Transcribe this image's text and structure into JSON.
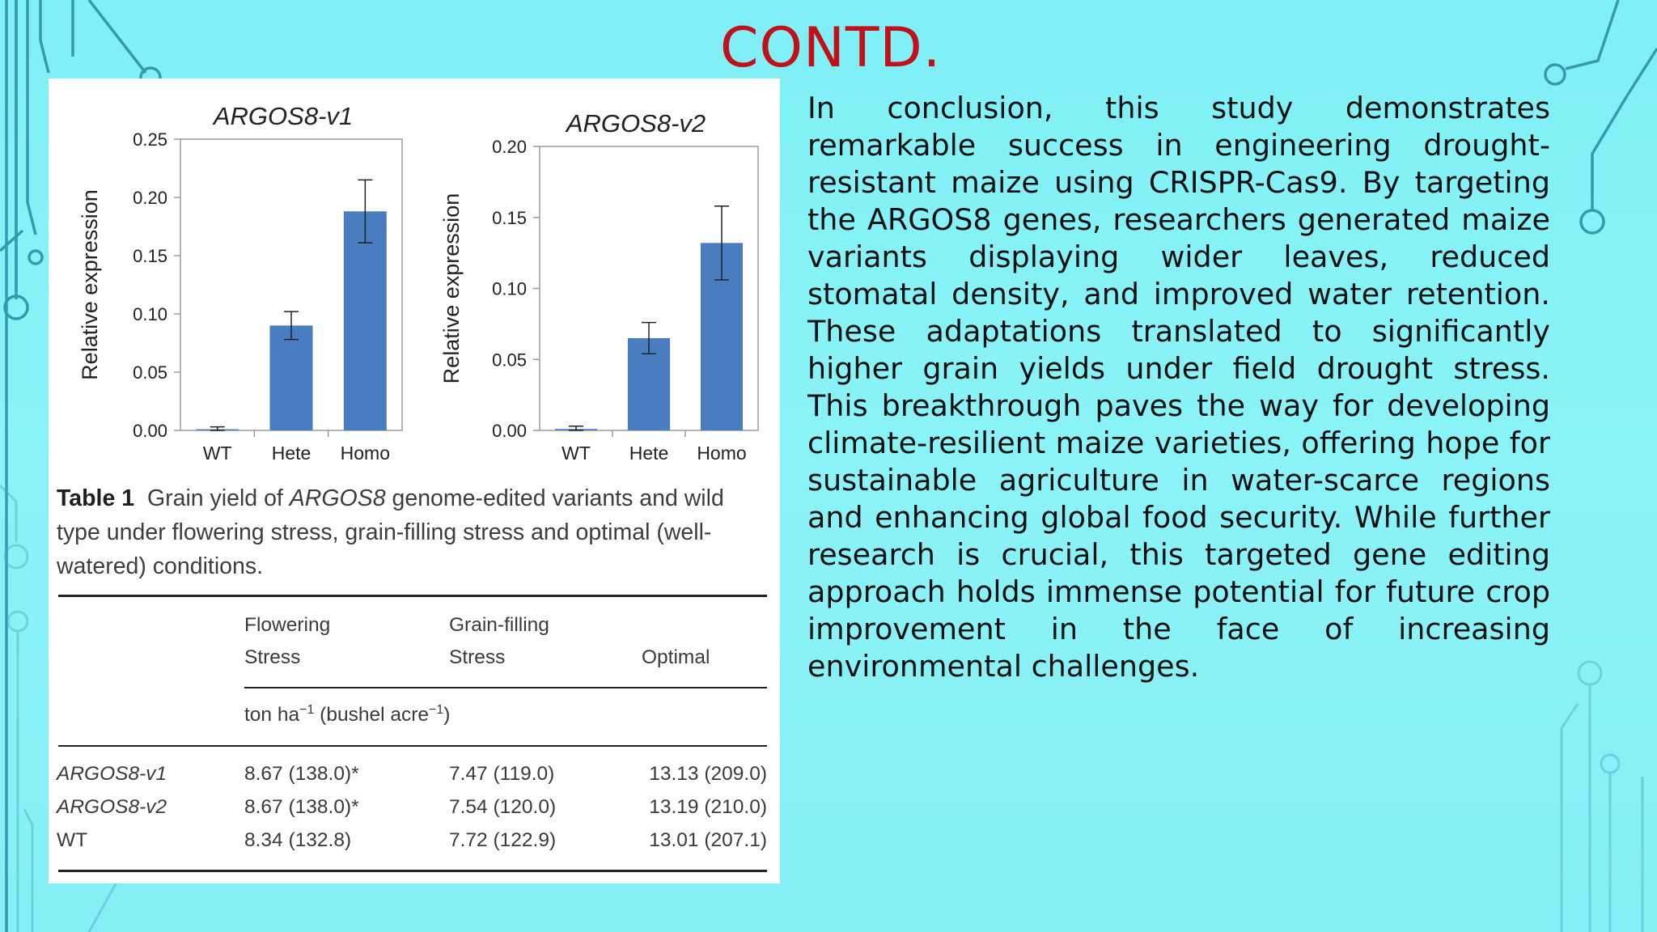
{
  "slide": {
    "title": "CONTD.",
    "body": "In conclusion, this study demonstrates remarkable success in engineering drought-resistant maize using CRISPR-Cas9. By targeting the ARGOS8 genes, researchers generated maize variants displaying wider leaves, reduced stomatal density, and improved water retention. These adaptations translated to significantly higher grain yields under field drought stress. This breakthrough paves the way for developing climate-resilient maize varieties, offering hope for sustainable agriculture in water-scarce regions and enhancing global food security. While further research is crucial, this targeted gene editing approach holds immense potential for future crop improvement in the face of increasing environmental challenges."
  },
  "chart_data": [
    {
      "type": "bar",
      "title": "ARGOS8-v1",
      "ylabel": "Relative expression",
      "categories": [
        "WT",
        "Hete",
        "Homo"
      ],
      "values": [
        0.001,
        0.09,
        0.188
      ],
      "errors": [
        0.002,
        0.012,
        0.027
      ],
      "ylim": [
        0,
        0.25
      ],
      "yticks": [
        "0.00",
        "0.05",
        "0.10",
        "0.15",
        "0.20",
        "0.25"
      ],
      "color": "#4a7cc0"
    },
    {
      "type": "bar",
      "title": "ARGOS8-v2",
      "ylabel": "Relative expression",
      "categories": [
        "WT",
        "Hete",
        "Homo"
      ],
      "values": [
        0.001,
        0.065,
        0.132
      ],
      "errors": [
        0.002,
        0.011,
        0.026
      ],
      "ylim": [
        0,
        0.2
      ],
      "yticks": [
        "0.00",
        "0.05",
        "0.10",
        "0.15",
        "0.20"
      ],
      "color": "#4a7cc0"
    }
  ],
  "table": {
    "label": "Table 1",
    "caption_a": "Grain yield of ",
    "caption_gene": "ARGOS8",
    "caption_b": " genome-edited variants and wild type under flowering stress, grain-filling stress and optimal (well-watered) conditions.",
    "col1_line1": "Flowering",
    "col1_line2": "Stress",
    "col2_line1": "Grain-filling",
    "col2_line2": "Stress",
    "col3": "Optimal",
    "unit_a": "ton ha",
    "unit_sup1": "−1",
    "unit_b": " (bushel acre",
    "unit_sup2": "−1",
    "unit_c": ")",
    "rows": [
      {
        "label": "ARGOS8-v1",
        "flowering": "8.67 (138.0)*",
        "grain": "7.47 (119.0)",
        "optimal": "13.13 (209.0)"
      },
      {
        "label": "ARGOS8-v2",
        "flowering": "8.67 (138.0)*",
        "grain": "7.54 (120.0)",
        "optimal": "13.19 (210.0)"
      },
      {
        "label": "WT",
        "flowering": "8.34 (132.8)",
        "grain": "7.72 (122.9)",
        "optimal": "13.01 (207.1)"
      }
    ]
  }
}
